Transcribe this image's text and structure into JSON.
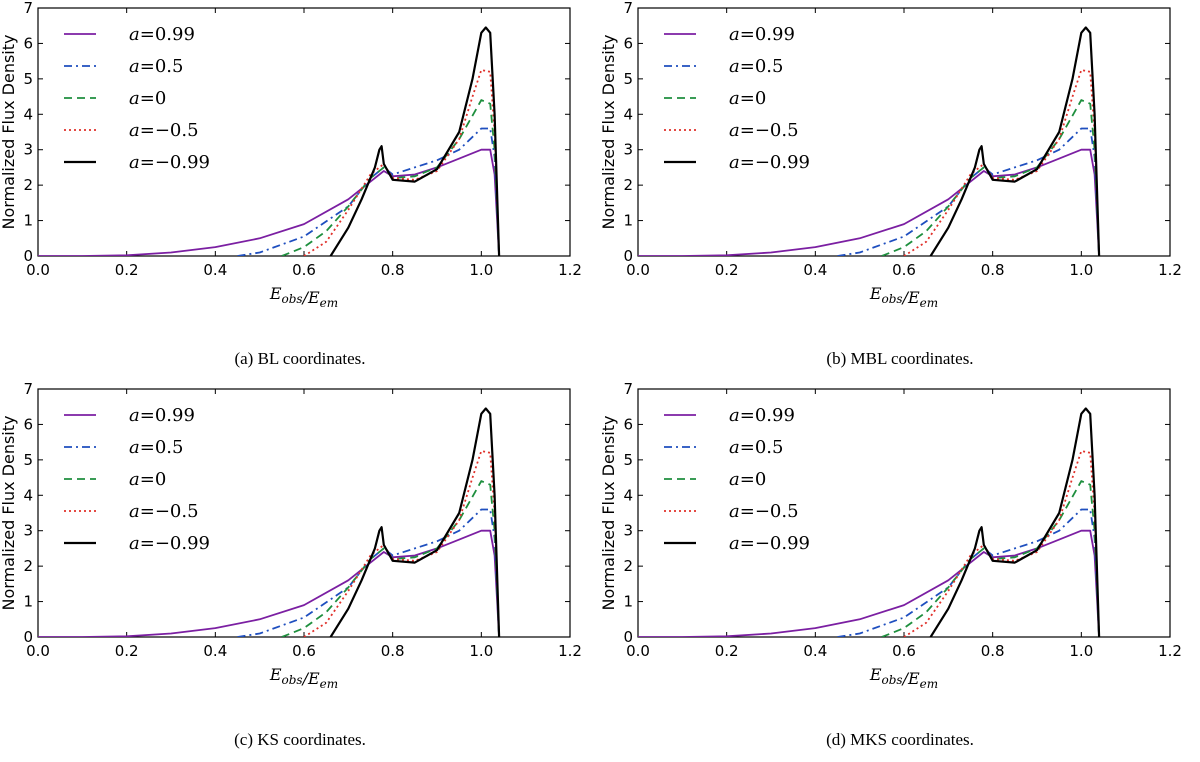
{
  "chart_data": [
    {
      "type": "line",
      "caption": "(a) BL coordinates.",
      "xlabel": "E_obs/E_em",
      "ylabel": "Normalized Flux Density",
      "xlim": [
        0.0,
        1.2
      ],
      "ylim": [
        0,
        7
      ],
      "xticks": [
        "0.0",
        "0.2",
        "0.4",
        "0.6",
        "0.8",
        "1.0",
        "1.2"
      ],
      "yticks": [
        "0",
        "1",
        "2",
        "3",
        "4",
        "5",
        "6",
        "7"
      ],
      "legend_position": "top-left",
      "series": [
        {
          "name": "a = 0.99",
          "label_var": "a",
          "label_value": "=0.99",
          "color": "#7b1fa2",
          "dash": "solid",
          "x": [
            0.0,
            0.1,
            0.2,
            0.3,
            0.4,
            0.5,
            0.6,
            0.7,
            0.75,
            0.78,
            0.8,
            0.85,
            0.9,
            0.95,
            1.0,
            1.02,
            1.03,
            1.04
          ],
          "y": [
            0.0,
            0.0,
            0.02,
            0.1,
            0.25,
            0.5,
            0.9,
            1.6,
            2.1,
            2.4,
            2.25,
            2.3,
            2.5,
            2.75,
            3.0,
            3.0,
            2.3,
            0.0
          ]
        },
        {
          "name": "a = 0.5",
          "label_var": "a",
          "label_value": "=0.5",
          "color": "#1f4fbf",
          "dash": "dashdot",
          "x": [
            0.45,
            0.5,
            0.6,
            0.7,
            0.75,
            0.78,
            0.8,
            0.85,
            0.9,
            0.95,
            1.0,
            1.02,
            1.03,
            1.04
          ],
          "y": [
            0.0,
            0.1,
            0.55,
            1.4,
            2.2,
            2.5,
            2.3,
            2.5,
            2.7,
            3.0,
            3.6,
            3.6,
            2.8,
            0.0
          ]
        },
        {
          "name": "a = 0",
          "label_var": "a",
          "label_value": "=0",
          "color": "#1e8f3e",
          "dash": "dashed",
          "x": [
            0.55,
            0.6,
            0.65,
            0.7,
            0.75,
            0.78,
            0.8,
            0.85,
            0.9,
            0.95,
            1.0,
            1.02,
            1.03,
            1.04
          ],
          "y": [
            0.0,
            0.25,
            0.7,
            1.4,
            2.2,
            2.5,
            2.2,
            2.25,
            2.5,
            3.3,
            4.4,
            4.3,
            3.0,
            0.0
          ]
        },
        {
          "name": "a = -0.5",
          "label_var": "a",
          "label_value": "=−0.5",
          "color": "#e0302a",
          "dash": "dotted",
          "x": [
            0.6,
            0.65,
            0.7,
            0.75,
            0.78,
            0.8,
            0.85,
            0.9,
            0.95,
            0.98,
            1.0,
            1.02,
            1.03,
            1.04
          ],
          "y": [
            0.0,
            0.4,
            1.3,
            2.3,
            2.6,
            2.2,
            2.15,
            2.4,
            3.3,
            4.5,
            5.25,
            5.2,
            3.5,
            0.0
          ]
        },
        {
          "name": "a = -0.99",
          "label_var": "a",
          "label_value": "=−0.99",
          "color": "#000000",
          "dash": "solid",
          "x": [
            0.66,
            0.7,
            0.73,
            0.76,
            0.77,
            0.775,
            0.78,
            0.8,
            0.85,
            0.9,
            0.95,
            0.98,
            1.0,
            1.01,
            1.02,
            1.03,
            1.04
          ],
          "y": [
            0.0,
            0.8,
            1.6,
            2.5,
            3.0,
            3.1,
            2.6,
            2.15,
            2.1,
            2.45,
            3.5,
            5.0,
            6.3,
            6.45,
            6.3,
            4.0,
            0.0
          ]
        }
      ]
    },
    {
      "type": "line",
      "caption": "(b) MBL coordinates.",
      "xlabel": "E_obs/E_em",
      "ylabel": "Normalized Flux Density",
      "xlim": [
        0.0,
        1.2
      ],
      "ylim": [
        0,
        7
      ],
      "xticks": [
        "0.0",
        "0.2",
        "0.4",
        "0.6",
        "0.8",
        "1.0",
        "1.2"
      ],
      "yticks": [
        "0",
        "1",
        "2",
        "3",
        "4",
        "5",
        "6",
        "7"
      ],
      "legend_position": "top-left",
      "series": [
        {
          "name": "a = 0.99",
          "label_var": "a",
          "label_value": "=0.99",
          "color": "#7b1fa2",
          "dash": "solid",
          "x": [
            0.0,
            0.1,
            0.2,
            0.3,
            0.4,
            0.5,
            0.6,
            0.7,
            0.75,
            0.78,
            0.8,
            0.85,
            0.9,
            0.95,
            1.0,
            1.02,
            1.03,
            1.04
          ],
          "y": [
            0.0,
            0.0,
            0.02,
            0.1,
            0.25,
            0.5,
            0.9,
            1.6,
            2.1,
            2.4,
            2.25,
            2.3,
            2.5,
            2.75,
            3.0,
            3.0,
            2.3,
            0.0
          ]
        },
        {
          "name": "a = 0.5",
          "label_var": "a",
          "label_value": "=0.5",
          "color": "#1f4fbf",
          "dash": "dashdot",
          "x": [
            0.45,
            0.5,
            0.6,
            0.7,
            0.75,
            0.78,
            0.8,
            0.85,
            0.9,
            0.95,
            1.0,
            1.02,
            1.03,
            1.04
          ],
          "y": [
            0.0,
            0.1,
            0.55,
            1.4,
            2.2,
            2.5,
            2.3,
            2.5,
            2.7,
            3.0,
            3.6,
            3.6,
            2.8,
            0.0
          ]
        },
        {
          "name": "a = 0",
          "label_var": "a",
          "label_value": "=0",
          "color": "#1e8f3e",
          "dash": "dashed",
          "x": [
            0.55,
            0.6,
            0.65,
            0.7,
            0.75,
            0.78,
            0.8,
            0.85,
            0.9,
            0.95,
            1.0,
            1.02,
            1.03,
            1.04
          ],
          "y": [
            0.0,
            0.25,
            0.7,
            1.4,
            2.2,
            2.5,
            2.2,
            2.25,
            2.5,
            3.3,
            4.4,
            4.3,
            3.0,
            0.0
          ]
        },
        {
          "name": "a = -0.5",
          "label_var": "a",
          "label_value": "=−0.5",
          "color": "#e0302a",
          "dash": "dotted",
          "x": [
            0.6,
            0.65,
            0.7,
            0.75,
            0.78,
            0.8,
            0.85,
            0.9,
            0.95,
            0.98,
            1.0,
            1.02,
            1.03,
            1.04
          ],
          "y": [
            0.0,
            0.4,
            1.3,
            2.3,
            2.6,
            2.2,
            2.15,
            2.4,
            3.3,
            4.5,
            5.25,
            5.2,
            3.5,
            0.0
          ]
        },
        {
          "name": "a = -0.99",
          "label_var": "a",
          "label_value": "=−0.99",
          "color": "#000000",
          "dash": "solid",
          "x": [
            0.66,
            0.7,
            0.73,
            0.76,
            0.77,
            0.775,
            0.78,
            0.8,
            0.85,
            0.9,
            0.95,
            0.98,
            1.0,
            1.01,
            1.02,
            1.03,
            1.04
          ],
          "y": [
            0.0,
            0.8,
            1.6,
            2.5,
            3.0,
            3.1,
            2.6,
            2.15,
            2.1,
            2.45,
            3.5,
            5.0,
            6.3,
            6.45,
            6.3,
            4.0,
            0.0
          ]
        }
      ]
    },
    {
      "type": "line",
      "caption": "(c) KS coordinates.",
      "xlabel": "E_obs/E_em",
      "ylabel": "Normalized Flux Density",
      "xlim": [
        0.0,
        1.2
      ],
      "ylim": [
        0,
        7
      ],
      "xticks": [
        "0.0",
        "0.2",
        "0.4",
        "0.6",
        "0.8",
        "1.0",
        "1.2"
      ],
      "yticks": [
        "0",
        "1",
        "2",
        "3",
        "4",
        "5",
        "6",
        "7"
      ],
      "legend_position": "top-left",
      "series": [
        {
          "name": "a = 0.99",
          "label_var": "a",
          "label_value": "=0.99",
          "color": "#7b1fa2",
          "dash": "solid",
          "x": [
            0.0,
            0.1,
            0.2,
            0.3,
            0.4,
            0.5,
            0.6,
            0.7,
            0.75,
            0.78,
            0.8,
            0.85,
            0.9,
            0.95,
            1.0,
            1.02,
            1.03,
            1.04
          ],
          "y": [
            0.0,
            0.0,
            0.02,
            0.1,
            0.25,
            0.5,
            0.9,
            1.6,
            2.1,
            2.4,
            2.25,
            2.3,
            2.5,
            2.75,
            3.0,
            3.0,
            2.3,
            0.0
          ]
        },
        {
          "name": "a = 0.5",
          "label_var": "a",
          "label_value": "=0.5",
          "color": "#1f4fbf",
          "dash": "dashdot",
          "x": [
            0.45,
            0.5,
            0.6,
            0.7,
            0.75,
            0.78,
            0.8,
            0.85,
            0.9,
            0.95,
            1.0,
            1.02,
            1.03,
            1.04
          ],
          "y": [
            0.0,
            0.1,
            0.55,
            1.4,
            2.2,
            2.5,
            2.3,
            2.5,
            2.7,
            3.0,
            3.6,
            3.6,
            2.8,
            0.0
          ]
        },
        {
          "name": "a = 0",
          "label_var": "a",
          "label_value": "=0",
          "color": "#1e8f3e",
          "dash": "dashed",
          "x": [
            0.55,
            0.6,
            0.65,
            0.7,
            0.75,
            0.78,
            0.8,
            0.85,
            0.9,
            0.95,
            1.0,
            1.02,
            1.03,
            1.04
          ],
          "y": [
            0.0,
            0.25,
            0.7,
            1.4,
            2.2,
            2.5,
            2.2,
            2.25,
            2.5,
            3.3,
            4.4,
            4.3,
            3.0,
            0.0
          ]
        },
        {
          "name": "a = -0.5",
          "label_var": "a",
          "label_value": "=−0.5",
          "color": "#e0302a",
          "dash": "dotted",
          "x": [
            0.6,
            0.65,
            0.7,
            0.75,
            0.78,
            0.8,
            0.85,
            0.9,
            0.95,
            0.98,
            1.0,
            1.02,
            1.03,
            1.04
          ],
          "y": [
            0.0,
            0.4,
            1.3,
            2.3,
            2.6,
            2.2,
            2.15,
            2.4,
            3.3,
            4.5,
            5.25,
            5.2,
            3.5,
            0.0
          ]
        },
        {
          "name": "a = -0.99",
          "label_var": "a",
          "label_value": "=−0.99",
          "color": "#000000",
          "dash": "solid",
          "x": [
            0.66,
            0.7,
            0.73,
            0.76,
            0.77,
            0.775,
            0.78,
            0.8,
            0.85,
            0.9,
            0.95,
            0.98,
            1.0,
            1.01,
            1.02,
            1.03,
            1.04
          ],
          "y": [
            0.0,
            0.8,
            1.6,
            2.5,
            3.0,
            3.1,
            2.6,
            2.15,
            2.1,
            2.45,
            3.5,
            5.0,
            6.3,
            6.45,
            6.3,
            4.0,
            0.0
          ]
        }
      ]
    },
    {
      "type": "line",
      "caption": "(d) MKS coordinates.",
      "xlabel": "E_obs/E_em",
      "ylabel": "Normalized Flux Density",
      "xlim": [
        0.0,
        1.2
      ],
      "ylim": [
        0,
        7
      ],
      "xticks": [
        "0.0",
        "0.2",
        "0.4",
        "0.6",
        "0.8",
        "1.0",
        "1.2"
      ],
      "yticks": [
        "0",
        "1",
        "2",
        "3",
        "4",
        "5",
        "6",
        "7"
      ],
      "legend_position": "top-left",
      "series": [
        {
          "name": "a = 0.99",
          "label_var": "a",
          "label_value": "=0.99",
          "color": "#7b1fa2",
          "dash": "solid",
          "x": [
            0.0,
            0.1,
            0.2,
            0.3,
            0.4,
            0.5,
            0.6,
            0.7,
            0.75,
            0.78,
            0.8,
            0.85,
            0.9,
            0.95,
            1.0,
            1.02,
            1.03,
            1.04
          ],
          "y": [
            0.0,
            0.0,
            0.02,
            0.1,
            0.25,
            0.5,
            0.9,
            1.6,
            2.1,
            2.4,
            2.25,
            2.3,
            2.5,
            2.75,
            3.0,
            3.0,
            2.3,
            0.0
          ]
        },
        {
          "name": "a = 0.5",
          "label_var": "a",
          "label_value": "=0.5",
          "color": "#1f4fbf",
          "dash": "dashdot",
          "x": [
            0.45,
            0.5,
            0.6,
            0.7,
            0.75,
            0.78,
            0.8,
            0.85,
            0.9,
            0.95,
            1.0,
            1.02,
            1.03,
            1.04
          ],
          "y": [
            0.0,
            0.1,
            0.55,
            1.4,
            2.2,
            2.5,
            2.3,
            2.5,
            2.7,
            3.0,
            3.6,
            3.6,
            2.8,
            0.0
          ]
        },
        {
          "name": "a = 0",
          "label_var": "a",
          "label_value": "=0",
          "color": "#1e8f3e",
          "dash": "dashed",
          "x": [
            0.55,
            0.6,
            0.65,
            0.7,
            0.75,
            0.78,
            0.8,
            0.85,
            0.9,
            0.95,
            1.0,
            1.02,
            1.03,
            1.04
          ],
          "y": [
            0.0,
            0.25,
            0.7,
            1.4,
            2.2,
            2.5,
            2.2,
            2.25,
            2.5,
            3.3,
            4.4,
            4.3,
            3.0,
            0.0
          ]
        },
        {
          "name": "a = -0.5",
          "label_var": "a",
          "label_value": "=−0.5",
          "color": "#e0302a",
          "dash": "dotted",
          "x": [
            0.6,
            0.65,
            0.7,
            0.75,
            0.78,
            0.8,
            0.85,
            0.9,
            0.95,
            0.98,
            1.0,
            1.02,
            1.03,
            1.04
          ],
          "y": [
            0.0,
            0.4,
            1.3,
            2.3,
            2.6,
            2.2,
            2.15,
            2.4,
            3.3,
            4.5,
            5.25,
            5.2,
            3.5,
            0.0
          ]
        },
        {
          "name": "a = -0.99",
          "label_var": "a",
          "label_value": "=−0.99",
          "color": "#000000",
          "dash": "solid",
          "x": [
            0.66,
            0.7,
            0.73,
            0.76,
            0.77,
            0.775,
            0.78,
            0.8,
            0.85,
            0.9,
            0.95,
            0.98,
            1.0,
            1.01,
            1.02,
            1.03,
            1.04
          ],
          "y": [
            0.0,
            0.8,
            1.6,
            2.5,
            3.0,
            3.1,
            2.6,
            2.15,
            2.1,
            2.45,
            3.5,
            5.0,
            6.3,
            6.45,
            6.3,
            4.0,
            0.0
          ]
        }
      ]
    }
  ]
}
